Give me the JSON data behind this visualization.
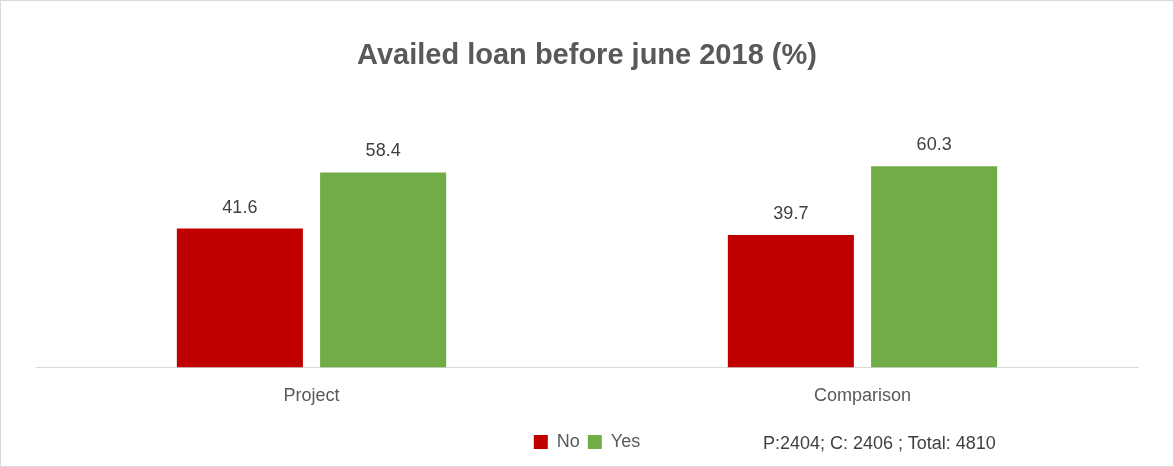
{
  "chart_data": {
    "type": "bar",
    "title": "Availed loan before june 2018 (%)",
    "categories": [
      "Project",
      "Comparison"
    ],
    "series": [
      {
        "name": "No",
        "color": "#c00000",
        "values": [
          41.6,
          39.7
        ]
      },
      {
        "name": "Yes",
        "color": "#70ad47",
        "values": [
          58.4,
          60.3
        ]
      }
    ],
    "data_labels": true,
    "grid": false,
    "legend": "bottom",
    "annotations": [
      "P:2404; C: 2406 ; Total: 4810"
    ]
  }
}
